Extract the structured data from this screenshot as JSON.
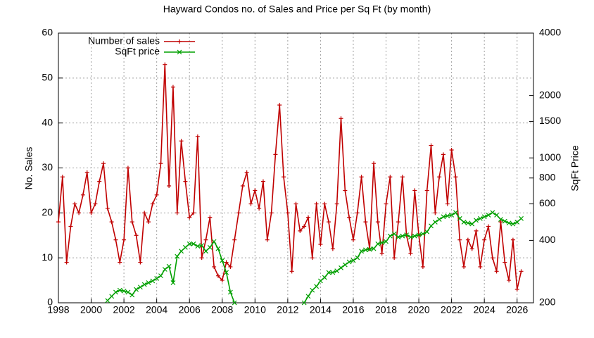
{
  "chart_data": {
    "type": "line",
    "title": "Hayward Condos no. of Sales and Price per Sq Ft (by month)",
    "ylabel": "No. Sales",
    "y2label": "SqFt Price",
    "xlim": [
      1998,
      2027
    ],
    "xticks": [
      1998,
      2000,
      2002,
      2004,
      2006,
      2008,
      2010,
      2012,
      2014,
      2016,
      2018,
      2020,
      2022,
      2024,
      2026
    ],
    "ylim": [
      0,
      60
    ],
    "yticks": [
      0,
      10,
      20,
      30,
      40,
      50,
      60
    ],
    "y2lim": [
      200,
      4000
    ],
    "y2ticks": [
      200,
      400,
      600,
      800,
      1000,
      1500,
      2000,
      4000
    ],
    "y2log": true,
    "grid": true,
    "legend": "top-left",
    "x": [
      1998,
      1998.25,
      1998.5,
      1998.75,
      1999,
      1999.25,
      1999.5,
      1999.75,
      2000,
      2000.25,
      2000.5,
      2000.75,
      2001,
      2001.25,
      2001.5,
      2001.75,
      2002,
      2002.25,
      2002.5,
      2002.75,
      2003,
      2003.25,
      2003.5,
      2003.75,
      2004,
      2004.25,
      2004.5,
      2004.75,
      2005,
      2005.25,
      2005.5,
      2005.75,
      2006,
      2006.25,
      2006.5,
      2006.75,
      2007,
      2007.25,
      2007.5,
      2007.75,
      2008,
      2008.25,
      2008.5,
      2008.75,
      2009,
      2009.25,
      2009.5,
      2009.75,
      2010,
      2010.25,
      2010.5,
      2010.75,
      2011,
      2011.25,
      2011.5,
      2011.75,
      2012,
      2012.25,
      2012.5,
      2012.75,
      2013,
      2013.25,
      2013.5,
      2013.75,
      2014,
      2014.25,
      2014.5,
      2014.75,
      2015,
      2015.25,
      2015.5,
      2015.75,
      2016,
      2016.25,
      2016.5,
      2016.75,
      2017,
      2017.25,
      2017.5,
      2017.75,
      2018,
      2018.25,
      2018.5,
      2018.75,
      2019,
      2019.25,
      2019.5,
      2019.75,
      2020,
      2020.25,
      2020.5,
      2020.75,
      2021,
      2021.25,
      2021.5,
      2021.75,
      2022,
      2022.25,
      2022.5,
      2022.75,
      2023,
      2023.25,
      2023.5,
      2023.75,
      2024,
      2024.25,
      2024.5,
      2024.75,
      2025,
      2025.25,
      2025.5,
      2025.75,
      2026,
      2026.25
    ],
    "series": [
      {
        "name": "Number of sales",
        "color": "#c00000",
        "marker": "plus",
        "values": [
          18,
          28,
          9,
          17,
          22,
          20,
          24,
          29,
          20,
          22,
          27,
          31,
          21,
          18,
          14,
          9,
          14,
          30,
          18,
          15,
          9,
          20,
          18,
          22,
          24,
          31,
          53,
          26,
          48,
          20,
          36,
          27,
          19,
          20,
          37,
          10,
          14,
          19,
          8,
          6,
          5,
          9,
          8,
          14,
          20,
          26,
          29,
          22,
          25,
          21,
          27,
          14,
          20,
          33,
          44,
          28,
          20,
          7,
          22,
          16,
          17,
          19,
          10,
          22,
          13,
          22,
          18,
          12,
          22,
          41,
          25,
          19,
          14,
          20,
          28,
          18,
          12,
          31,
          18,
          11,
          22,
          28,
          10,
          18,
          28,
          15,
          11,
          25,
          15,
          8,
          25,
          35,
          20,
          28,
          33,
          22,
          34,
          28,
          14,
          8,
          14,
          12,
          16,
          8,
          14,
          17,
          10,
          7,
          18,
          9,
          5,
          14,
          3,
          7
        ]
      },
      {
        "name": "SqFt price",
        "color": "#00a000",
        "marker": "cross",
        "axis": "y2",
        "values": [
          null,
          null,
          null,
          null,
          null,
          null,
          null,
          null,
          null,
          null,
          null,
          null,
          205,
          215,
          225,
          230,
          228,
          225,
          218,
          232,
          238,
          245,
          250,
          255,
          262,
          270,
          290,
          300,
          250,
          335,
          355,
          370,
          385,
          385,
          375,
          378,
          355,
          370,
          395,
          365,
          320,
          280,
          225,
          200,
          null,
          null,
          null,
          null,
          null,
          null,
          null,
          null,
          null,
          null,
          null,
          null,
          null,
          null,
          null,
          null,
          200,
          215,
          230,
          240,
          255,
          265,
          280,
          280,
          285,
          295,
          305,
          315,
          320,
          330,
          355,
          360,
          362,
          365,
          385,
          390,
          395,
          420,
          430,
          415,
          420,
          425,
          415,
          420,
          425,
          430,
          440,
          470,
          490,
          505,
          520,
          525,
          530,
          545,
          510,
          490,
          485,
          480,
          500,
          510,
          520,
          530,
          545,
          530,
          505,
          495,
          485,
          480,
          490,
          510
        ]
      }
    ]
  }
}
